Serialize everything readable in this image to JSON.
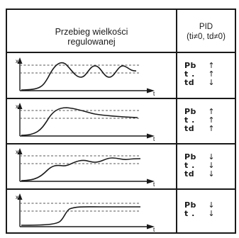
{
  "header": {
    "left_line1": "Przebieg wielkości",
    "left_line2": "regulowanej",
    "right_line1": "PID",
    "right_line2": "(ti≠0, td≠0)"
  },
  "axis_labels": {
    "y": "x",
    "x": "t"
  },
  "rows": [
    {
      "response": "oscillating",
      "params": [
        {
          "label": "Pb",
          "arrow": "↑"
        },
        {
          "label": "t .",
          "arrow": "↑"
        },
        {
          "label": "td",
          "arrow": "↓"
        }
      ]
    },
    {
      "response": "overshoot-settle",
      "params": [
        {
          "label": "Pb",
          "arrow": "↑"
        },
        {
          "label": "t .",
          "arrow": "↑"
        },
        {
          "label": "td",
          "arrow": "↑"
        }
      ]
    },
    {
      "response": "damped-oscillation",
      "params": [
        {
          "label": "Pb",
          "arrow": "↓"
        },
        {
          "label": "t .",
          "arrow": "↓"
        },
        {
          "label": "td",
          "arrow": "↓"
        }
      ]
    },
    {
      "response": "slow-step",
      "params": [
        {
          "label": "Pb",
          "arrow": "↓"
        },
        {
          "label": "t .",
          "arrow": "↓"
        }
      ]
    }
  ]
}
